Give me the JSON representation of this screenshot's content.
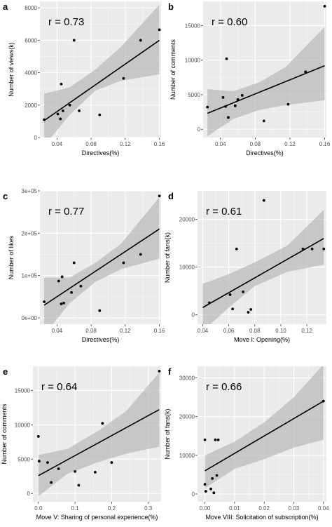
{
  "chart_data": [
    {
      "type": "scatter",
      "panel_letter": "a",
      "r_label": "r = 0.73",
      "xlabel": "Directives(%)",
      "ylabel": "Number of views(k)",
      "xlim": [
        0.02,
        0.162
      ],
      "ylim": [
        0,
        8400
      ],
      "x_ticks": [
        0.04,
        0.08,
        0.12,
        0.16
      ],
      "x_tick_labels": [
        "0.04",
        "0.08",
        "0.12",
        "0.16"
      ],
      "y_ticks": [
        0,
        2000,
        4000,
        6000,
        8000
      ],
      "y_tick_labels": [
        "0",
        "2000",
        "4000",
        "6000",
        "8000"
      ],
      "points": [
        {
          "x": 0.025,
          "y": 1100
        },
        {
          "x": 0.041,
          "y": 1450
        },
        {
          "x": 0.044,
          "y": 1150
        },
        {
          "x": 0.045,
          "y": 3300
        },
        {
          "x": 0.047,
          "y": 1650
        },
        {
          "x": 0.055,
          "y": 2000
        },
        {
          "x": 0.06,
          "y": 6000
        },
        {
          "x": 0.066,
          "y": 1650
        },
        {
          "x": 0.09,
          "y": 1400
        },
        {
          "x": 0.118,
          "y": 3650
        },
        {
          "x": 0.138,
          "y": 6000
        },
        {
          "x": 0.16,
          "y": 6650
        }
      ],
      "fit": {
        "x": [
          0.025,
          0.16
        ],
        "y": [
          1050,
          6000
        ]
      },
      "band": {
        "x": [
          0.025,
          0.055,
          0.085,
          0.115,
          0.16
        ],
        "lower": [
          -500,
          1400,
          2900,
          3500,
          3900
        ],
        "upper": [
          2700,
          3100,
          4200,
          5600,
          8200
        ]
      }
    },
    {
      "type": "scatter",
      "panel_letter": "b",
      "r_label": "r = 0.60",
      "xlabel": "Directives(%)",
      "ylabel": "Number of comments",
      "xlim": [
        0.02,
        0.162
      ],
      "ylim": [
        -1200,
        18500
      ],
      "x_ticks": [
        0.04,
        0.08,
        0.12,
        0.16
      ],
      "x_tick_labels": [
        "0.04",
        "0.08",
        "0.12",
        "0.16"
      ],
      "y_ticks": [
        0,
        5000,
        10000,
        15000
      ],
      "y_tick_labels": [
        "0",
        "5000",
        "10000",
        "15000"
      ],
      "points": [
        {
          "x": 0.025,
          "y": 3200
        },
        {
          "x": 0.043,
          "y": 4600
        },
        {
          "x": 0.046,
          "y": 3300
        },
        {
          "x": 0.047,
          "y": 10200
        },
        {
          "x": 0.049,
          "y": 1700
        },
        {
          "x": 0.057,
          "y": 3400
        },
        {
          "x": 0.06,
          "y": 4300
        },
        {
          "x": 0.065,
          "y": 4900
        },
        {
          "x": 0.09,
          "y": 1200
        },
        {
          "x": 0.118,
          "y": 3600
        },
        {
          "x": 0.138,
          "y": 8300
        },
        {
          "x": 0.16,
          "y": 17800
        }
      ],
      "fit": {
        "x": [
          0.025,
          0.16
        ],
        "y": [
          2300,
          9200
        ]
      },
      "band": {
        "x": [
          0.025,
          0.055,
          0.085,
          0.115,
          0.16
        ],
        "lower": [
          -1000,
          1500,
          2800,
          3500,
          4200
        ],
        "upper": [
          5800,
          5500,
          6800,
          9000,
          14800
        ]
      }
    },
    {
      "type": "scatter",
      "panel_letter": "c",
      "r_label": "r = 0.77",
      "xlabel": "Directives(%)",
      "ylabel": "Number of likes",
      "xlim": [
        0.02,
        0.162
      ],
      "ylim": [
        -15000,
        300000
      ],
      "x_ticks": [
        0.04,
        0.08,
        0.12,
        0.16
      ],
      "x_tick_labels": [
        "0.04",
        "0.08",
        "0.12",
        "0.16"
      ],
      "y_ticks": [
        0,
        100000,
        200000,
        300000
      ],
      "y_tick_labels": [
        "0e+00",
        "1e+05",
        "2e+05",
        "3e+05"
      ],
      "points": [
        {
          "x": 0.025,
          "y": 38000
        },
        {
          "x": 0.042,
          "y": 87000
        },
        {
          "x": 0.045,
          "y": 33000
        },
        {
          "x": 0.046,
          "y": 97000
        },
        {
          "x": 0.048,
          "y": 35000
        },
        {
          "x": 0.057,
          "y": 60000
        },
        {
          "x": 0.06,
          "y": 130000
        },
        {
          "x": 0.068,
          "y": 75000
        },
        {
          "x": 0.09,
          "y": 17000
        },
        {
          "x": 0.118,
          "y": 130000
        },
        {
          "x": 0.138,
          "y": 150000
        },
        {
          "x": 0.16,
          "y": 288000
        }
      ],
      "fit": {
        "x": [
          0.025,
          0.16
        ],
        "y": [
          30000,
          210000
        ]
      },
      "band": {
        "x": [
          0.025,
          0.055,
          0.085,
          0.115,
          0.16
        ],
        "lower": [
          -40000,
          35000,
          85000,
          115000,
          140000
        ],
        "upper": [
          95000,
          95000,
          130000,
          175000,
          285000
        ]
      }
    },
    {
      "type": "scatter",
      "panel_letter": "d",
      "r_label": "r = 0.61",
      "xlabel": "Move I: Opening(%)",
      "ylabel": "Number of fans(k)",
      "xlim": [
        0.036,
        0.135
      ],
      "ylim": [
        -2000,
        26000
      ],
      "x_ticks": [
        0.04,
        0.06,
        0.08,
        0.1,
        0.12
      ],
      "x_tick_labels": [
        "0.04",
        "0.06",
        "0.08",
        "0.10",
        "0.12"
      ],
      "y_ticks": [
        0,
        10000,
        20000
      ],
      "y_tick_labels": [
        "0",
        "10000",
        "20000"
      ],
      "points": [
        {
          "x": 0.045,
          "y": 2500
        },
        {
          "x": 0.061,
          "y": 4200
        },
        {
          "x": 0.063,
          "y": 1200
        },
        {
          "x": 0.066,
          "y": 13800
        },
        {
          "x": 0.071,
          "y": 4800
        },
        {
          "x": 0.075,
          "y": 500
        },
        {
          "x": 0.077,
          "y": 1100
        },
        {
          "x": 0.087,
          "y": 24000
        },
        {
          "x": 0.117,
          "y": 13800
        },
        {
          "x": 0.124,
          "y": 13800
        },
        {
          "x": 0.133,
          "y": 13800
        }
      ],
      "fit": {
        "x": [
          0.04,
          0.133
        ],
        "y": [
          1500,
          16000
        ]
      },
      "band": {
        "x": [
          0.04,
          0.06,
          0.08,
          0.105,
          0.133
        ],
        "lower": [
          -3500,
          1500,
          6000,
          9000,
          10500
        ],
        "upper": [
          6500,
          8500,
          11000,
          14500,
          22000
        ]
      }
    },
    {
      "type": "scatter",
      "panel_letter": "e",
      "r_label": "r = 0.64",
      "xlabel": "Move V: Sharing of personal experience(%)",
      "ylabel": "Number of comments",
      "xlim": [
        -0.015,
        0.335
      ],
      "ylim": [
        -1200,
        18500
      ],
      "x_ticks": [
        0.0,
        0.1,
        0.2,
        0.3
      ],
      "x_tick_labels": [
        "0.0",
        "0.1",
        "0.2",
        "0.3"
      ],
      "y_ticks": [
        0,
        5000,
        10000,
        15000
      ],
      "y_tick_labels": [
        "0",
        "5000",
        "10000",
        "15000"
      ],
      "points": [
        {
          "x": 0.0,
          "y": 8300
        },
        {
          "x": 0.002,
          "y": 4700
        },
        {
          "x": 0.025,
          "y": 4500
        },
        {
          "x": 0.035,
          "y": 1600
        },
        {
          "x": 0.055,
          "y": 3600
        },
        {
          "x": 0.1,
          "y": 3200
        },
        {
          "x": 0.11,
          "y": 1200
        },
        {
          "x": 0.155,
          "y": 3100
        },
        {
          "x": 0.175,
          "y": 10200
        },
        {
          "x": 0.2,
          "y": 4500
        },
        {
          "x": 0.33,
          "y": 17800
        }
      ],
      "fit": {
        "x": [
          0.0,
          0.33
        ],
        "y": [
          2600,
          12200
        ]
      },
      "band": {
        "x": [
          0.0,
          0.08,
          0.16,
          0.24,
          0.33
        ],
        "lower": [
          -400,
          2900,
          4500,
          5800,
          6800
        ],
        "upper": [
          5600,
          6500,
          9000,
          12000,
          17600
        ]
      }
    },
    {
      "type": "scatter",
      "panel_letter": "f",
      "r_label": "r = 0.66",
      "xlabel": "Move VIII: Solicitation of subscription(%)",
      "ylabel": "Number of fans(k)",
      "xlim": [
        -0.0025,
        0.041
      ],
      "ylim": [
        -2000,
        33000
      ],
      "x_ticks": [
        0.0,
        0.01,
        0.02,
        0.03,
        0.04
      ],
      "x_tick_labels": [
        "0.00",
        "0.01",
        "0.02",
        "0.03",
        "0.04"
      ],
      "y_ticks": [
        0,
        10000,
        20000,
        30000
      ],
      "y_tick_labels": [
        "0",
        "10000",
        "20000",
        "30000"
      ],
      "points": [
        {
          "x": 0.0,
          "y": 14000
        },
        {
          "x": 0.0,
          "y": 2500
        },
        {
          "x": 0.0003,
          "y": 700
        },
        {
          "x": 0.002,
          "y": 1300
        },
        {
          "x": 0.0025,
          "y": 4000
        },
        {
          "x": 0.003,
          "y": 300
        },
        {
          "x": 0.0035,
          "y": 14000
        },
        {
          "x": 0.004,
          "y": 4800
        },
        {
          "x": 0.0045,
          "y": 14000
        },
        {
          "x": 0.04,
          "y": 24000
        }
      ],
      "fit": {
        "x": [
          0.0,
          0.04
        ],
        "y": [
          6000,
          24000
        ]
      },
      "band": {
        "x": [
          0.0,
          0.01,
          0.02,
          0.03,
          0.04
        ],
        "lower": [
          1500,
          6500,
          9000,
          12000,
          14000
        ],
        "upper": [
          10000,
          13500,
          18500,
          25000,
          33500
        ]
      }
    }
  ]
}
